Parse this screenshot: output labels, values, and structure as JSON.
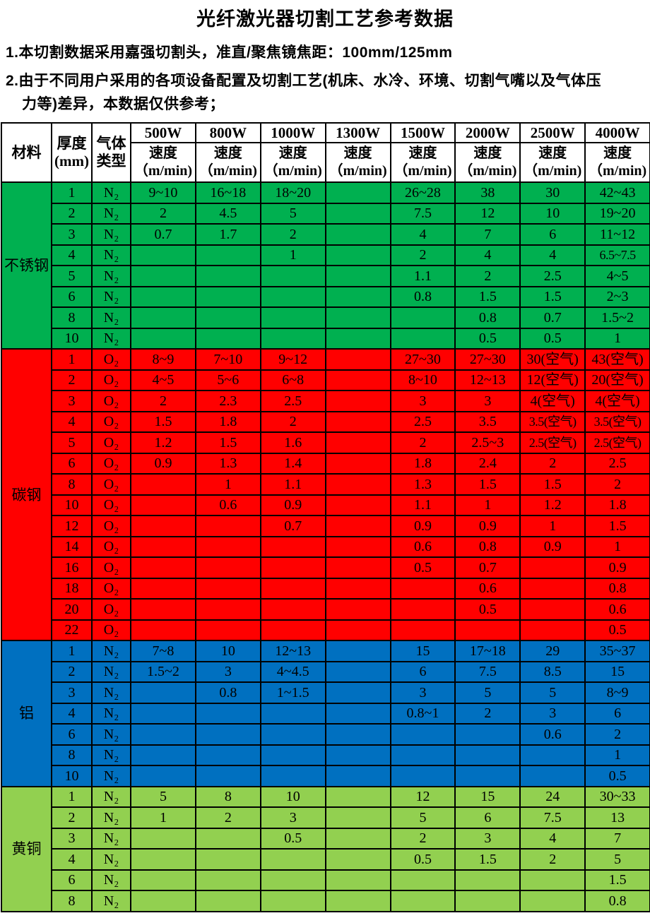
{
  "title": "光纤激光器切割工艺参考数据",
  "notes": {
    "line1": "1.本切割数据采用嘉强切割头，准直/聚焦镜焦距：100mm/125mm",
    "line2a": "2.由于不同用户采用的各项设备配置及切割工艺(机床、水冷、环境、切割气嘴以及气体压",
    "line2b": "力等)差异，本数据仅供参考；"
  },
  "table": {
    "corner": {
      "material": "材料",
      "thickness_1": "厚度",
      "thickness_2": "(mm)",
      "gas_1": "气体",
      "gas_2": "类型"
    },
    "powers": [
      "500W",
      "800W",
      "1000W",
      "1300W",
      "1500W",
      "2000W",
      "2500W",
      "4000W"
    ],
    "speed_label": "速度",
    "speed_unit": "（m/min)",
    "sections": [
      {
        "name": "不锈钢",
        "color": "#00B050",
        "rows": [
          {
            "t": "1",
            "gas": "N₂",
            "v": [
              "9~10",
              "16~18",
              "18~20",
              "",
              "26~28",
              "38",
              "30",
              "42~43"
            ]
          },
          {
            "t": "2",
            "gas": "N₂",
            "v": [
              "2",
              "4.5",
              "5",
              "",
              "7.5",
              "12",
              "10",
              "19~20"
            ]
          },
          {
            "t": "3",
            "gas": "N₂",
            "v": [
              "0.7",
              "1.7",
              "2",
              "",
              "4",
              "7",
              "6",
              "11~12"
            ]
          },
          {
            "t": "4",
            "gas": "N₂",
            "v": [
              "",
              "",
              "1",
              "",
              "2",
              "4",
              "4",
              "6.5~7.5"
            ]
          },
          {
            "t": "5",
            "gas": "N₂",
            "v": [
              "",
              "",
              "",
              "",
              "1.1",
              "2",
              "2.5",
              "4~5"
            ]
          },
          {
            "t": "6",
            "gas": "N₂",
            "v": [
              "",
              "",
              "",
              "",
              "0.8",
              "1.5",
              "1.5",
              "2~3"
            ]
          },
          {
            "t": "8",
            "gas": "N₂",
            "v": [
              "",
              "",
              "",
              "",
              "",
              "0.8",
              "0.7",
              "1.5~2"
            ]
          },
          {
            "t": "10",
            "gas": "N₂",
            "v": [
              "",
              "",
              "",
              "",
              "",
              "0.5",
              "0.5",
              "1"
            ]
          }
        ]
      },
      {
        "name": "碳钢",
        "color": "#FF0000",
        "rows": [
          {
            "t": "1",
            "gas": "O₂",
            "v": [
              "8~9",
              "7~10",
              "9~12",
              "",
              "27~30",
              "27~30",
              "30(空气)",
              "43(空气)"
            ]
          },
          {
            "t": "2",
            "gas": "O₂",
            "v": [
              "4~5",
              "5~6",
              "6~8",
              "",
              "8~10",
              "12~13",
              "12(空气)",
              "20(空气)"
            ]
          },
          {
            "t": "3",
            "gas": "O₂",
            "v": [
              "2",
              "2.3",
              "2.5",
              "",
              "3",
              "3",
              "4(空气)",
              "4(空气)"
            ]
          },
          {
            "t": "4",
            "gas": "O₂",
            "v": [
              "1.5",
              "1.8",
              "2",
              "",
              "2.5",
              "3.5",
              "3.5(空气)",
              "3.5(空气)"
            ]
          },
          {
            "t": "5",
            "gas": "O₂",
            "v": [
              "1.2",
              "1.5",
              "1.6",
              "",
              "2",
              "2.5~3",
              "2.5(空气)",
              "2.5(空气)"
            ]
          },
          {
            "t": "6",
            "gas": "O₂",
            "v": [
              "0.9",
              "1.3",
              "1.4",
              "",
              "1.8",
              "2.4",
              "2",
              "2.5"
            ]
          },
          {
            "t": "8",
            "gas": "O₂",
            "v": [
              "",
              "1",
              "1.1",
              "",
              "1.3",
              "1.5",
              "1.5",
              "2"
            ]
          },
          {
            "t": "10",
            "gas": "O₂",
            "v": [
              "",
              "0.6",
              "0.9",
              "",
              "1.1",
              "1",
              "1.2",
              "1.8"
            ]
          },
          {
            "t": "12",
            "gas": "O₂",
            "v": [
              "",
              "",
              "0.7",
              "",
              "0.9",
              "0.9",
              "1",
              "1.5"
            ]
          },
          {
            "t": "14",
            "gas": "O₂",
            "v": [
              "",
              "",
              "",
              "",
              "0.6",
              "0.8",
              "0.9",
              "1"
            ]
          },
          {
            "t": "16",
            "gas": "O₂",
            "v": [
              "",
              "",
              "",
              "",
              "0.5",
              "0.7",
              "",
              "0.9"
            ]
          },
          {
            "t": "18",
            "gas": "O₂",
            "v": [
              "",
              "",
              "",
              "",
              "",
              "0.6",
              "",
              "0.8"
            ]
          },
          {
            "t": "20",
            "gas": "O₂",
            "v": [
              "",
              "",
              "",
              "",
              "",
              "0.5",
              "",
              "0.6"
            ]
          },
          {
            "t": "22",
            "gas": "O₂",
            "v": [
              "",
              "",
              "",
              "",
              "",
              "",
              "",
              "0.5"
            ]
          }
        ]
      },
      {
        "name": "铝",
        "color": "#0070C0",
        "rows": [
          {
            "t": "1",
            "gas": "N₂",
            "v": [
              "7~8",
              "10",
              "12~13",
              "",
              "15",
              "17~18",
              "29",
              "35~37"
            ]
          },
          {
            "t": "2",
            "gas": "N₂",
            "v": [
              "1.5~2",
              "3",
              "4~4.5",
              "",
              "6",
              "7.5",
              "8.5",
              "15"
            ]
          },
          {
            "t": "3",
            "gas": "N₂",
            "v": [
              "",
              "0.8",
              "1~1.5",
              "",
              "3",
              "5",
              "5",
              "8~9"
            ]
          },
          {
            "t": "4",
            "gas": "N₂",
            "v": [
              "",
              "",
              "",
              "",
              "0.8~1",
              "2",
              "3",
              "6"
            ]
          },
          {
            "t": "6",
            "gas": "N₂",
            "v": [
              "",
              "",
              "",
              "",
              "",
              "",
              "0.6",
              "2"
            ]
          },
          {
            "t": "8",
            "gas": "N₂",
            "v": [
              "",
              "",
              "",
              "",
              "",
              "",
              "",
              "1"
            ]
          },
          {
            "t": "10",
            "gas": "N₂",
            "v": [
              "",
              "",
              "",
              "",
              "",
              "",
              "",
              "0.5"
            ]
          }
        ]
      },
      {
        "name": "黄铜",
        "color": "#92D050",
        "rows": [
          {
            "t": "1",
            "gas": "N₂",
            "v": [
              "5",
              "8",
              "10",
              "",
              "12",
              "15",
              "24",
              "30~33"
            ]
          },
          {
            "t": "2",
            "gas": "N₂",
            "v": [
              "1",
              "2",
              "3",
              "",
              "5",
              "6",
              "7.5",
              "13"
            ]
          },
          {
            "t": "3",
            "gas": "N₂",
            "v": [
              "",
              "",
              "0.5",
              "",
              "2",
              "3",
              "4",
              "7"
            ]
          },
          {
            "t": "4",
            "gas": "N₂",
            "v": [
              "",
              "",
              "",
              "",
              "0.5",
              "1.5",
              "2",
              "5"
            ]
          },
          {
            "t": "6",
            "gas": "N₂",
            "v": [
              "",
              "",
              "",
              "",
              "",
              "",
              "",
              "1.5"
            ]
          },
          {
            "t": "8",
            "gas": "N₂",
            "v": [
              "",
              "",
              "",
              "",
              "",
              "",
              "",
              "0.8"
            ]
          }
        ]
      }
    ]
  }
}
